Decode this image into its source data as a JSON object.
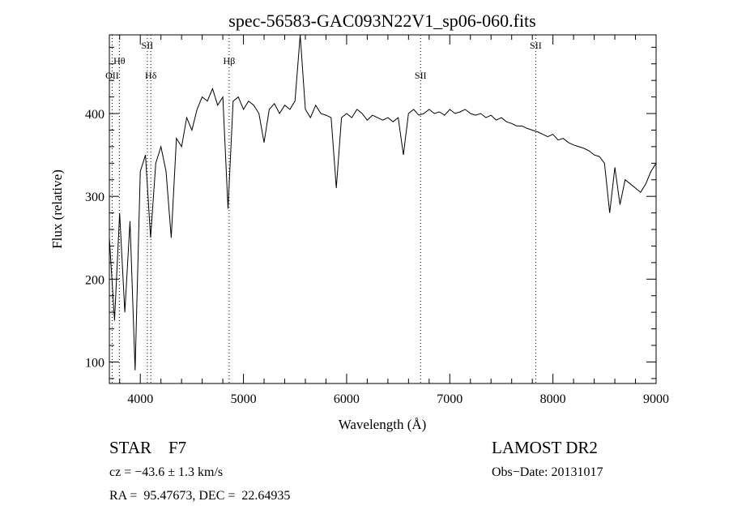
{
  "chart_data": {
    "type": "line",
    "title": "spec-56583-GAC093N22V1_sp06-060.fits",
    "xlabel": "Wavelength (Å)",
    "ylabel": "Flux (relative)",
    "xlim": [
      3700,
      9000
    ],
    "ylim": [
      74,
      495
    ],
    "xticks": [
      "4000",
      "5000",
      "6000",
      "7000",
      "8000",
      "9000"
    ],
    "yticks": [
      "100",
      "200",
      "300",
      "400"
    ],
    "grid": false,
    "series": [
      {
        "name": "spectrum",
        "x": [
          3700,
          3750,
          3800,
          3850,
          3900,
          3950,
          4000,
          4050,
          4100,
          4150,
          4200,
          4250,
          4300,
          4350,
          4400,
          4450,
          4500,
          4550,
          4600,
          4650,
          4700,
          4750,
          4800,
          4850,
          4900,
          4950,
          5000,
          5050,
          5100,
          5150,
          5200,
          5250,
          5300,
          5350,
          5400,
          5450,
          5500,
          5550,
          5600,
          5650,
          5700,
          5750,
          5800,
          5850,
          5900,
          5950,
          6000,
          6050,
          6100,
          6150,
          6200,
          6250,
          6300,
          6350,
          6400,
          6450,
          6500,
          6550,
          6600,
          6650,
          6700,
          6750,
          6800,
          6850,
          6900,
          6950,
          7000,
          7050,
          7100,
          7150,
          7200,
          7250,
          7300,
          7350,
          7400,
          7450,
          7500,
          7550,
          7600,
          7650,
          7700,
          7750,
          7800,
          7850,
          7900,
          7950,
          8000,
          8050,
          8100,
          8150,
          8200,
          8250,
          8300,
          8350,
          8400,
          8450,
          8500,
          8550,
          8600,
          8650,
          8700,
          8750,
          8800,
          8850,
          8900,
          8950,
          9000
        ],
        "y": [
          250,
          150,
          280,
          160,
          270,
          90,
          330,
          350,
          250,
          340,
          360,
          330,
          250,
          370,
          360,
          395,
          380,
          405,
          420,
          415,
          430,
          410,
          420,
          285,
          415,
          420,
          405,
          415,
          410,
          400,
          365,
          405,
          412,
          400,
          410,
          405,
          415,
          495,
          405,
          395,
          410,
          400,
          398,
          395,
          310,
          395,
          400,
          395,
          405,
          400,
          392,
          398,
          395,
          392,
          395,
          390,
          395,
          350,
          400,
          405,
          398,
          400,
          405,
          400,
          402,
          398,
          405,
          400,
          402,
          405,
          400,
          398,
          400,
          395,
          398,
          392,
          395,
          390,
          388,
          385,
          385,
          382,
          380,
          378,
          375,
          372,
          375,
          368,
          370,
          365,
          362,
          360,
          358,
          355,
          350,
          348,
          340,
          280,
          335,
          290,
          320,
          315,
          310,
          305,
          315,
          330,
          340
        ]
      }
    ],
    "line_markers": [
      {
        "label": "OII",
        "x": 3727,
        "row": 3
      },
      {
        "label": "Hθ",
        "x": 3797,
        "row": 2
      },
      {
        "label": "SII",
        "x": 4068,
        "row": 1
      },
      {
        "label": "Hδ",
        "x": 4102,
        "row": 3
      },
      {
        "label": "Hβ",
        "x": 4861,
        "row": 2
      },
      {
        "label": "SII",
        "x": 6717,
        "row": 3
      },
      {
        "label": "SII",
        "x": 7833,
        "row": 1
      }
    ]
  },
  "info": {
    "object_type": "STAR    F7",
    "redshift": "cz = −43.6 ± 1.3 km/s",
    "coords": "RA =  95.47673, DEC =  22.64935",
    "survey": "LAMOST DR2",
    "obs_date": "Obs−Date: 20131017"
  }
}
